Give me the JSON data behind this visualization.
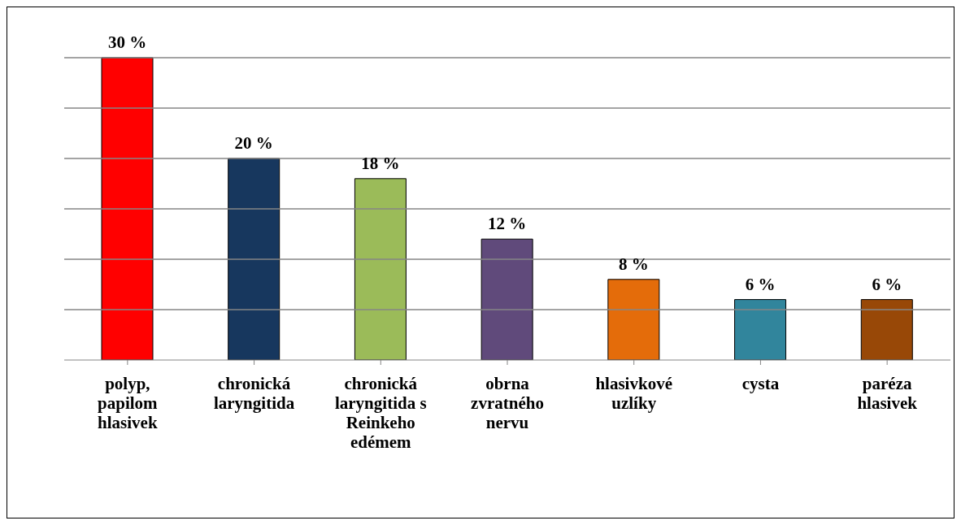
{
  "chart_data": {
    "type": "bar",
    "categories": [
      "polyp, papilom hlasivek",
      "chronická laryngitida",
      "chronická laryngitida s Reinkeho edémem",
      "obrna zvratného nervu",
      "hlasivkové uzlíky",
      "cysta",
      "paréza hlasivek"
    ],
    "values": [
      30,
      20,
      18,
      12,
      8,
      6,
      6
    ],
    "colors": [
      "#ff0000",
      "#17375e",
      "#9bbb59",
      "#604a7b",
      "#e46c0a",
      "#31859c",
      "#984807"
    ],
    "value_labels": [
      "30 %",
      "20 %",
      "18 %",
      "12 %",
      "8 %",
      "6 %",
      "6 %"
    ],
    "ylim": [
      0,
      35
    ],
    "yticks": [
      {
        "value": 5,
        "label": null
      },
      {
        "value": 10,
        "label": null
      },
      {
        "value": 15,
        "label": null
      },
      {
        "value": 20,
        "label": null
      },
      {
        "value": 25,
        "label": null
      },
      {
        "value": 30,
        "label": null
      }
    ],
    "grid": "y",
    "tick_labels": "x"
  }
}
